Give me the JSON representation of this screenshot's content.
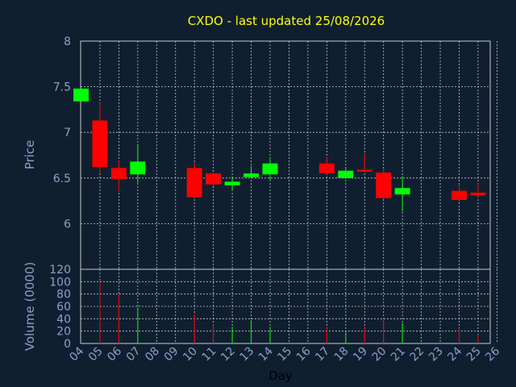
{
  "chart_data": [
    {
      "type": "candlestick",
      "title": "CXDO - last updated 25/08/2026",
      "ylabel": "Price",
      "ylim": [
        5.5,
        8.0
      ],
      "yticks": [
        "6",
        "6.5",
        "7",
        "7.5",
        "8"
      ],
      "grid": true,
      "x": [
        "04",
        "05",
        "06",
        "07",
        "08",
        "09",
        "10",
        "11",
        "12",
        "13",
        "14",
        "15",
        "16",
        "17",
        "18",
        "19",
        "20",
        "21",
        "22",
        "23",
        "24",
        "25",
        "26"
      ],
      "candles": [
        {
          "day": "04",
          "open": 7.34,
          "high": 7.48,
          "low": 7.33,
          "close": 7.48
        },
        {
          "day": "05",
          "open": 7.13,
          "high": 7.32,
          "low": 6.55,
          "close": 6.62
        },
        {
          "day": "06",
          "open": 6.61,
          "high": 6.69,
          "low": 6.35,
          "close": 6.49
        },
        {
          "day": "07",
          "open": 6.54,
          "high": 6.87,
          "low": 6.45,
          "close": 6.68
        },
        {
          "day": "10",
          "open": 6.61,
          "high": 6.67,
          "low": 6.29,
          "close": 6.29
        },
        {
          "day": "11",
          "open": 6.55,
          "high": 6.56,
          "low": 6.41,
          "close": 6.43
        },
        {
          "day": "12",
          "open": 6.42,
          "high": 6.51,
          "low": 6.37,
          "close": 6.46
        },
        {
          "day": "13",
          "open": 6.51,
          "high": 6.63,
          "low": 6.5,
          "close": 6.55
        },
        {
          "day": "14",
          "open": 6.54,
          "high": 6.73,
          "low": 6.47,
          "close": 6.66
        },
        {
          "day": "17",
          "open": 6.66,
          "high": 6.73,
          "low": 6.54,
          "close": 6.55
        },
        {
          "day": "18",
          "open": 6.5,
          "high": 6.62,
          "low": 6.49,
          "close": 6.58
        },
        {
          "day": "19",
          "open": 6.59,
          "high": 6.77,
          "low": 6.56,
          "close": 6.57
        },
        {
          "day": "20",
          "open": 6.56,
          "high": 6.6,
          "low": 6.27,
          "close": 6.28
        },
        {
          "day": "21",
          "open": 6.32,
          "high": 6.52,
          "low": 6.13,
          "close": 6.39
        },
        {
          "day": "24",
          "open": 6.36,
          "high": 6.43,
          "low": 6.24,
          "close": 6.26
        },
        {
          "day": "25",
          "open": 6.34,
          "high": 6.44,
          "low": 6.29,
          "close": 6.31
        }
      ]
    },
    {
      "type": "bar",
      "ylabel": "Volume (0000)",
      "xlabel": "Day",
      "ylim": [
        0,
        120
      ],
      "yticks": [
        "0",
        "20",
        "40",
        "60",
        "80",
        "100",
        "120"
      ],
      "grid": true,
      "x": [
        "04",
        "05",
        "06",
        "07",
        "08",
        "09",
        "10",
        "11",
        "12",
        "13",
        "14",
        "15",
        "16",
        "17",
        "18",
        "19",
        "20",
        "21",
        "22",
        "23",
        "24",
        "25",
        "26"
      ],
      "bars": [
        {
          "day": "05",
          "value": 100,
          "color": "red"
        },
        {
          "day": "06",
          "value": 80,
          "color": "red"
        },
        {
          "day": "07",
          "value": 58,
          "color": "green"
        },
        {
          "day": "10",
          "value": 47,
          "color": "red"
        },
        {
          "day": "11",
          "value": 32,
          "color": "red"
        },
        {
          "day": "12",
          "value": 27,
          "color": "green"
        },
        {
          "day": "13",
          "value": 38,
          "color": "green"
        },
        {
          "day": "14",
          "value": 27,
          "color": "green"
        },
        {
          "day": "17",
          "value": 27,
          "color": "red"
        },
        {
          "day": "18",
          "value": 18,
          "color": "green"
        },
        {
          "day": "19",
          "value": 27,
          "color": "red"
        },
        {
          "day": "20",
          "value": 41,
          "color": "red"
        },
        {
          "day": "21",
          "value": 33,
          "color": "green"
        },
        {
          "day": "24",
          "value": 25,
          "color": "red"
        },
        {
          "day": "25",
          "value": 14,
          "color": "red"
        }
      ]
    }
  ],
  "colors": {
    "background": "#0f1f30",
    "up": "#00ff00",
    "down": "#ff0000",
    "grid": "#c8c8c8",
    "tick_text": "#8ca0c8",
    "title_text": "#ffff00",
    "axis_label": "#8ca0c8",
    "axis_title_dark": "#000000"
  }
}
